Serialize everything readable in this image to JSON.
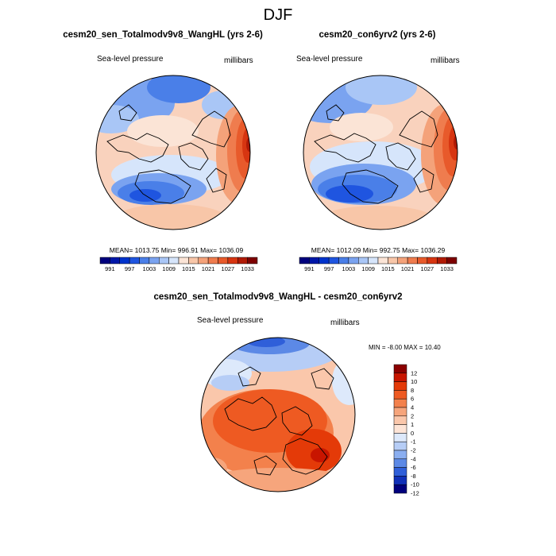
{
  "figure": {
    "title": "DJF"
  },
  "panels": [
    {
      "title": "cesm20_sen_Totalmodv9v8_WangHL (yrs 2-6)",
      "left_label": "Sea-level pressure",
      "right_label": "millibars",
      "stats": "MEAN= 1013.75  Min= 996.91  Max= 1036.09",
      "colorbar_ticks": [
        "991",
        "997",
        "1003",
        "1009",
        "1015",
        "1021",
        "1027",
        "1033"
      ]
    },
    {
      "title": "cesm20_con6yrv2 (yrs 2-6)",
      "left_label": "Sea-level pressure",
      "right_label": "millibars",
      "stats": "MEAN= 1012.09  Min= 992.75  Max= 1036.29",
      "colorbar_ticks": [
        "991",
        "997",
        "1003",
        "1009",
        "1015",
        "1021",
        "1027",
        "1033"
      ]
    }
  ],
  "difference": {
    "title": "cesm20_sen_Totalmodv9v8_WangHL - cesm20_con6yrv2",
    "left_label": "Sea-level pressure",
    "right_label": "millibars",
    "minmax": "MIN =  -8.00 MAX =  10.40",
    "colorbar_ticks": [
      "12",
      "10",
      "8",
      "6",
      "4",
      "2",
      "1",
      "0",
      "-1",
      "-2",
      "-4",
      "-6",
      "-8",
      "-10",
      "-12"
    ]
  },
  "palette": {
    "slp": [
      "#00007d",
      "#0017a8",
      "#0033cc",
      "#1f55e0",
      "#4a7fe8",
      "#7aa3f0",
      "#a9c6f6",
      "#d6e5fb",
      "#fbe4d6",
      "#f8c6a8",
      "#f4a27a",
      "#ef7c4e",
      "#e85a2b",
      "#d73511",
      "#b01a05",
      "#7d0000"
    ],
    "diff": [
      "#8b0000",
      "#c81500",
      "#e43a08",
      "#ee5a22",
      "#f3814c",
      "#f6a57c",
      "#fac7ab",
      "#fde4d6",
      "#dde9fb",
      "#b6cdf6",
      "#8aaef0",
      "#5c89e6",
      "#2f5fd9",
      "#1030b8",
      "#00007d"
    ],
    "land_outline": "#000000"
  }
}
